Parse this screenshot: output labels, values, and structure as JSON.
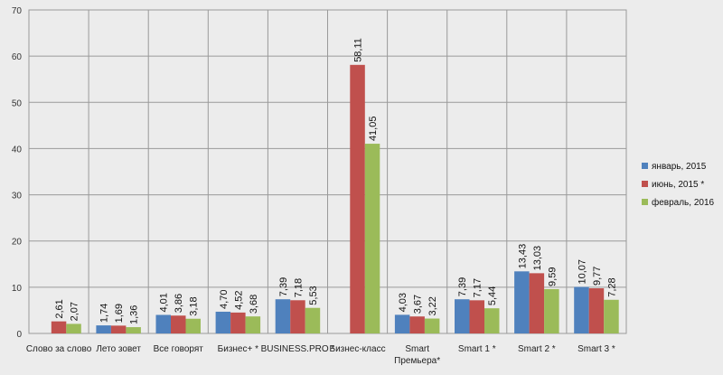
{
  "chart_data": {
    "type": "bar",
    "ylim": [
      0,
      70
    ],
    "yticks": [
      0,
      10,
      20,
      30,
      40,
      50,
      60,
      70
    ],
    "grid": true,
    "legend_position": "right",
    "categories": [
      [
        "Слово за слово"
      ],
      [
        "Лето зовет"
      ],
      [
        "Все говорят"
      ],
      [
        "Бизнес+ *"
      ],
      [
        "BUSINESS.PRO *"
      ],
      [
        "Бизнес-класс"
      ],
      [
        "Smart",
        "Премьера*"
      ],
      [
        "Smart 1 *"
      ],
      [
        "Smart 2 *"
      ],
      [
        "Smart 3 *"
      ]
    ],
    "series": [
      {
        "name": "январь, 2015",
        "color": "#4f81bd",
        "values": [
          null,
          1.74,
          4.01,
          4.7,
          7.39,
          null,
          4.03,
          7.39,
          13.43,
          10.07
        ],
        "labels": [
          "",
          "1,74",
          "4,01",
          "4,70",
          "7,39",
          "",
          "4,03",
          "7,39",
          "13,43",
          "10,07"
        ]
      },
      {
        "name": "июнь, 2015 *",
        "color": "#c0504d",
        "values": [
          2.61,
          1.69,
          3.86,
          4.52,
          7.18,
          58.11,
          3.67,
          7.17,
          13.03,
          9.77
        ],
        "labels": [
          "2,61",
          "1,69",
          "3,86",
          "4,52",
          "7,18",
          "58,11",
          "3,67",
          "7,17",
          "13,03",
          "9,77"
        ]
      },
      {
        "name": "февраль, 2016",
        "color": "#9bbb59",
        "values": [
          2.07,
          1.36,
          3.18,
          3.68,
          5.53,
          41.05,
          3.22,
          5.44,
          9.59,
          7.28
        ],
        "labels": [
          "2,07",
          "1,36",
          "3,18",
          "3,68",
          "5,53",
          "41,05",
          "3,22",
          "5,44",
          "9,59",
          "7,28"
        ]
      }
    ]
  }
}
